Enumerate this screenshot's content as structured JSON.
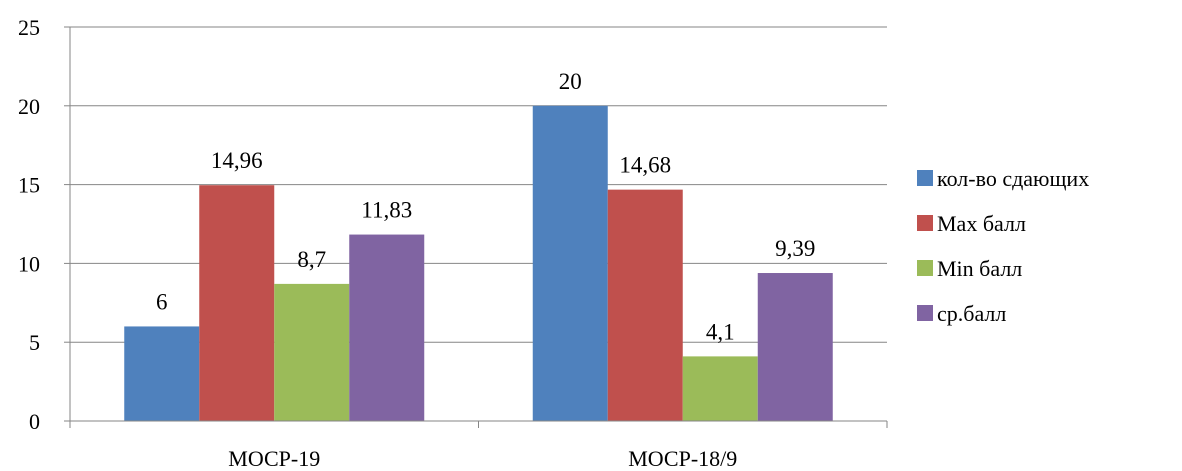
{
  "chart_data": {
    "type": "bar",
    "title": "",
    "xlabel": "",
    "ylabel": "",
    "categories": [
      "МОСР-19",
      "МОСР-18/9"
    ],
    "series": [
      {
        "name": "кол-во сдающих",
        "values": [
          6,
          20
        ],
        "labels": [
          "6",
          "20"
        ],
        "color": "#4f81bd"
      },
      {
        "name": "Max балл",
        "values": [
          14.96,
          14.68
        ],
        "labels": [
          "14,96",
          "14,68"
        ],
        "color": "#c0504d"
      },
      {
        "name": "Min балл",
        "values": [
          8.7,
          4.1
        ],
        "labels": [
          "8,7",
          "4,1"
        ],
        "color": "#9bbb59"
      },
      {
        "name": "ср.балл",
        "values": [
          11.83,
          9.39
        ],
        "labels": [
          "11,83",
          "9,39"
        ],
        "color": "#8064a2"
      }
    ],
    "ylim": [
      0,
      25
    ],
    "yticks": [
      0,
      5,
      10,
      15,
      20,
      25
    ],
    "ytick_labels": [
      "0",
      "5",
      "10",
      "15",
      "20",
      "25"
    ],
    "grid": true,
    "legend_position": "right"
  }
}
